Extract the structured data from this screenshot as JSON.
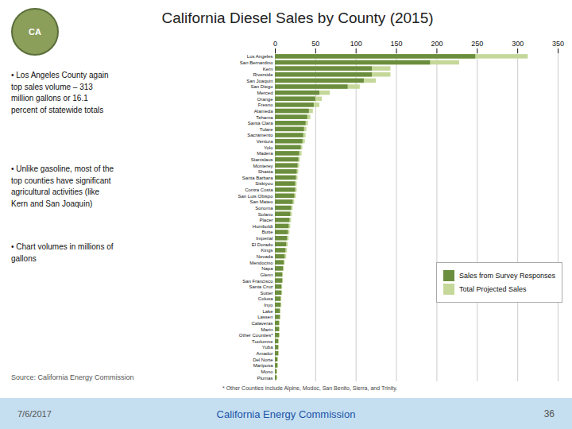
{
  "chart_data": {
    "type": "bar",
    "orientation": "horizontal",
    "stacked": false,
    "title": "California Diesel Sales by County (2015)",
    "categories": [
      "Los Angeles",
      "San Bernardino",
      "Kern",
      "Riverside",
      "San Joaquin",
      "San Diego",
      "Merced",
      "Orange",
      "Fresno",
      "Alameda",
      "Tehama",
      "Santa Clara",
      "Tulare",
      "Sacramento",
      "Ventura",
      "Yolo",
      "Madera",
      "Stanislaus",
      "Monterey",
      "Shasta",
      "Santa Barbara",
      "Siskiyou",
      "Contra Costa",
      "San Luis Obispo",
      "San Mateo",
      "Sonoma",
      "Solano",
      "Placer",
      "Humboldt",
      "Butte",
      "Imperial",
      "El Dorado",
      "Kings",
      "Nevada",
      "Mendocino",
      "Napa",
      "Glenn",
      "San Francisco",
      "Santa Cruz",
      "Sutter",
      "Colusa",
      "Inyo",
      "Lake",
      "Lassen",
      "Calaveras",
      "Marin",
      "Other Counties*",
      "Tuolumne",
      "Yuba",
      "Amador",
      "Del Norte",
      "Mariposa",
      "Mono",
      "Plumas"
    ],
    "series": [
      {
        "name": "Sales from Survey Responses",
        "color": "#6b8e3e",
        "values": [
          248,
          192,
          120,
          120,
          110,
          90,
          55,
          50,
          48,
          42,
          40,
          38,
          36,
          35,
          34,
          32,
          30,
          29,
          28,
          27,
          26,
          25,
          25,
          24,
          22,
          20,
          19,
          18,
          17,
          16,
          15,
          14,
          13,
          12,
          11,
          10,
          9,
          9,
          8,
          8,
          7,
          7,
          6,
          6,
          5,
          5,
          5,
          4,
          4,
          4,
          3,
          3,
          2,
          2
        ]
      },
      {
        "name": "Total Projected Sales",
        "color": "#c5d89a",
        "values": [
          313,
          228,
          143,
          143,
          125,
          105,
          68,
          58,
          55,
          47,
          44,
          41,
          39,
          38,
          37,
          34,
          33,
          31,
          30,
          29,
          28,
          27,
          27,
          26,
          24,
          22,
          21,
          20,
          19,
          18,
          17,
          16,
          15,
          14,
          12,
          11,
          10,
          10,
          9,
          9,
          8,
          8,
          7,
          7,
          6,
          6,
          6,
          5,
          5,
          5,
          4,
          4,
          3,
          3
        ]
      }
    ],
    "xlim": [
      0,
      350
    ],
    "xticks": [
      0,
      50,
      100,
      150,
      200,
      250,
      300,
      350
    ],
    "grid": true,
    "legend": "right",
    "annotations": [
      "CA",
      "• Los Angeles County again\ntop sales volume – 313\nmillion gallons or 16.1\npercent of statewide totals",
      "• Unlike gasoline, most of the\ntop counties have significant\nagricultural activities (like\nKern and San Joaquin)",
      "• Chart volumes in millions of\ngallons",
      "Source: California Energy Commission",
      "* Other Counties include Alpine, Modoc, San Benito, Sierra, and Trinity.",
      "7/6/2017",
      "California Energy Commission",
      "36"
    ]
  }
}
